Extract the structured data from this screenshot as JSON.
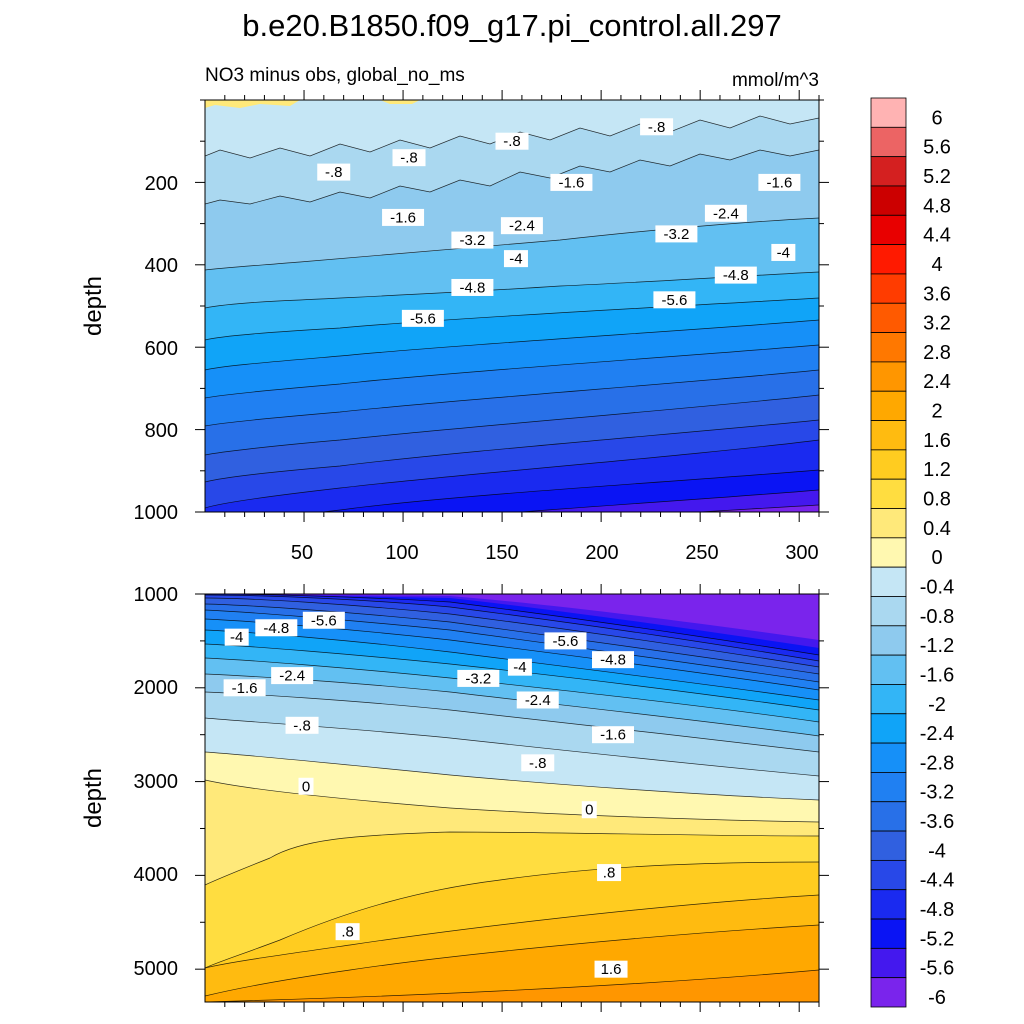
{
  "title": "b.e20.B1850.f09_g17.pi_control.all.297",
  "chart_data": [
    {
      "type": "contour",
      "panel": "upper",
      "subtitle_left": "NO3 minus obs, global_no_ms",
      "subtitle_right": "mmol/m^3",
      "ylabel": "depth",
      "xlim": [
        0,
        310
      ],
      "ylim": [
        0,
        1000
      ],
      "y_inverted": true,
      "xticks": [
        "50",
        "100",
        "150",
        "200",
        "250",
        "300"
      ],
      "yticks": [
        "200",
        "400",
        "600",
        "800",
        "1000"
      ],
      "contour_labels": [
        {
          "text": "-.8",
          "x": 65,
          "y": 175
        },
        {
          "text": "-.8",
          "x": 103,
          "y": 140
        },
        {
          "text": "-.8",
          "x": 155,
          "y": 100
        },
        {
          "text": "-.8",
          "x": 228,
          "y": 65
        },
        {
          "text": "-1.6",
          "x": 100,
          "y": 285
        },
        {
          "text": "-1.6",
          "x": 185,
          "y": 200
        },
        {
          "text": "-1.6",
          "x": 290,
          "y": 200
        },
        {
          "text": "-2.4",
          "x": 160,
          "y": 305
        },
        {
          "text": "-2.4",
          "x": 263,
          "y": 275
        },
        {
          "text": "-3.2",
          "x": 135,
          "y": 340
        },
        {
          "text": "-3.2",
          "x": 238,
          "y": 325
        },
        {
          "text": "-4",
          "x": 157,
          "y": 385
        },
        {
          "text": "-4",
          "x": 292,
          "y": 370
        },
        {
          "text": "-4.8",
          "x": 135,
          "y": 455
        },
        {
          "text": "-4.8",
          "x": 268,
          "y": 425
        },
        {
          "text": "-5.6",
          "x": 110,
          "y": 530
        },
        {
          "text": "-5.6",
          "x": 237,
          "y": 485
        }
      ]
    },
    {
      "type": "contour",
      "panel": "lower",
      "ylabel": "depth",
      "xlim": [
        0,
        310
      ],
      "ylim": [
        1000,
        5350
      ],
      "y_inverted": true,
      "yticks": [
        "1000",
        "2000",
        "3000",
        "4000",
        "5000"
      ],
      "contour_labels": [
        {
          "text": "-5.6",
          "x": 60,
          "y": 1280
        },
        {
          "text": "-5.6",
          "x": 182,
          "y": 1500
        },
        {
          "text": "-4.8",
          "x": 36,
          "y": 1360
        },
        {
          "text": "-4.8",
          "x": 206,
          "y": 1700
        },
        {
          "text": "-4",
          "x": 16,
          "y": 1460
        },
        {
          "text": "-4",
          "x": 159,
          "y": 1780
        },
        {
          "text": "-3.2",
          "x": 138,
          "y": 1900
        },
        {
          "text": "-2.4",
          "x": 44,
          "y": 1870
        },
        {
          "text": "-2.4",
          "x": 168,
          "y": 2130
        },
        {
          "text": "-1.6",
          "x": 20,
          "y": 2000
        },
        {
          "text": "-1.6",
          "x": 206,
          "y": 2500
        },
        {
          "text": "-.8",
          "x": 49,
          "y": 2400
        },
        {
          "text": "-.8",
          "x": 168,
          "y": 2800
        },
        {
          "text": "0",
          "x": 51,
          "y": 3050
        },
        {
          "text": "0",
          "x": 194,
          "y": 3300
        },
        {
          "text": ".8",
          "x": 204,
          "y": 3970
        },
        {
          "text": ".8",
          "x": 72,
          "y": 4600
        },
        {
          "text": "1.6",
          "x": 205,
          "y": 5000
        }
      ]
    }
  ],
  "colorbar": {
    "labels": [
      "6",
      "5.6",
      "5.2",
      "4.8",
      "4.4",
      "4",
      "3.6",
      "3.2",
      "2.8",
      "2.4",
      "2",
      "1.6",
      "1.2",
      "0.8",
      "0.4",
      "0",
      "-0.4",
      "-0.8",
      "-1.2",
      "-1.6",
      "-2",
      "-2.4",
      "-2.8",
      "-3.2",
      "-3.6",
      "-4",
      "-4.4",
      "-4.8",
      "-5.2",
      "-5.6",
      "-6"
    ],
    "colors": [
      "#ffb3b3",
      "#ec6464",
      "#d42020",
      "#cc0000",
      "#e80000",
      "#ff1a00",
      "#ff3c00",
      "#ff5a00",
      "#ff7800",
      "#ff9600",
      "#ffa800",
      "#ffbb10",
      "#ffcc20",
      "#ffdd40",
      "#ffe97a",
      "#fff8b0",
      "#c5e6f5",
      "#aad8f0",
      "#8ecaee",
      "#62c0f2",
      "#33b5f6",
      "#10a4f8",
      "#1690f8",
      "#2080f2",
      "#2870e8",
      "#3060e0",
      "#2848e8",
      "#1a2af0",
      "#0a14f4",
      "#4418ee",
      "#7a24ec"
    ]
  }
}
